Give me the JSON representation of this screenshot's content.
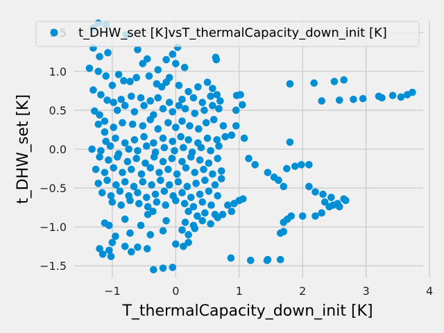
{
  "chart_data": {
    "type": "scatter",
    "xlabel": "T_thermalCapacity_down_init [K]",
    "ylabel": "t_DHW_set [K]",
    "legend_placement": "top",
    "grid": true,
    "xlim": [
      -1.6,
      3.9
    ],
    "ylim": [
      -1.65,
      1.65
    ],
    "xticks": [
      -1,
      0,
      1,
      2,
      3,
      4
    ],
    "yticks": [
      -1.5,
      -1.0,
      -0.5,
      0.0,
      0.5,
      1.0,
      1.5
    ],
    "xtick_labels": [
      "−1",
      "0",
      "1",
      "2",
      "3",
      "4"
    ],
    "ytick_labels": [
      "−1.5",
      "−1.0",
      "−0.5",
      "0.0",
      "0.5",
      "1.0",
      "1.5"
    ],
    "colors": {
      "background": "#f0f0f0",
      "grid": "#cbcbcb",
      "marker": "#008fd5"
    },
    "series": [
      {
        "name": "t_DHW_set [K]vsT_thermalCapacity_down_init [K]",
        "points": [
          [
            -1.3,
            1.56
          ],
          [
            -1.22,
            1.62
          ],
          [
            -1.1,
            1.6
          ],
          [
            -0.78,
            1.47
          ],
          [
            -1.3,
            1.3
          ],
          [
            -1.2,
            1.19
          ],
          [
            -1.07,
            1.24
          ],
          [
            -0.6,
            1.28
          ],
          [
            -0.52,
            1.1
          ],
          [
            -0.45,
            1.16
          ],
          [
            -0.28,
            1.02
          ],
          [
            -0.15,
            1.15
          ],
          [
            0.0,
            1.1
          ],
          [
            0.03,
            1.31
          ],
          [
            0.14,
            1.05
          ],
          [
            -0.05,
            1.22
          ],
          [
            0.63,
            1.18
          ],
          [
            0.64,
            1.15
          ],
          [
            -1.36,
            1.04
          ],
          [
            -1.22,
            1.0
          ],
          [
            -1.1,
            0.94
          ],
          [
            -1.0,
            0.82
          ],
          [
            -0.9,
            0.96
          ],
          [
            -0.82,
            0.88
          ],
          [
            -0.72,
            0.87
          ],
          [
            -0.62,
            0.92
          ],
          [
            -0.42,
            0.94
          ],
          [
            -0.3,
            0.84
          ],
          [
            -0.15,
            0.86
          ],
          [
            -0.1,
            0.92
          ],
          [
            0.05,
            0.82
          ],
          [
            0.2,
            0.74
          ],
          [
            0.35,
            0.8
          ],
          [
            0.5,
            0.86
          ],
          [
            0.58,
            0.78
          ],
          [
            0.65,
            0.7
          ],
          [
            -0.22,
            0.8
          ],
          [
            -1.3,
            0.76
          ],
          [
            -1.18,
            0.7
          ],
          [
            -1.08,
            0.63
          ],
          [
            -0.98,
            0.6
          ],
          [
            -0.86,
            0.64
          ],
          [
            -0.7,
            0.68
          ],
          [
            -0.55,
            0.66
          ],
          [
            -0.4,
            0.62
          ],
          [
            -0.28,
            0.66
          ],
          [
            -0.1,
            0.6
          ],
          [
            0.1,
            0.64
          ],
          [
            0.28,
            0.66
          ],
          [
            0.42,
            0.6
          ],
          [
            0.55,
            0.68
          ],
          [
            0.96,
            0.69
          ],
          [
            1.02,
            0.7
          ],
          [
            0.7,
            0.62
          ],
          [
            -1.28,
            0.49
          ],
          [
            -1.2,
            0.44
          ],
          [
            -1.12,
            0.36
          ],
          [
            -0.92,
            0.5
          ],
          [
            -0.8,
            0.56
          ],
          [
            -0.65,
            0.48
          ],
          [
            -0.5,
            0.56
          ],
          [
            -0.35,
            0.44
          ],
          [
            -0.2,
            0.52
          ],
          [
            -0.05,
            0.48
          ],
          [
            0.05,
            0.56
          ],
          [
            0.15,
            0.52
          ],
          [
            0.3,
            0.46
          ],
          [
            0.45,
            0.5
          ],
          [
            0.58,
            0.56
          ],
          [
            0.68,
            0.52
          ],
          [
            0.95,
            0.5
          ],
          [
            1.05,
            0.57
          ],
          [
            -1.22,
            0.32
          ],
          [
            -1.12,
            0.22
          ],
          [
            -0.98,
            0.28
          ],
          [
            -0.84,
            0.34
          ],
          [
            -0.68,
            0.32
          ],
          [
            -0.52,
            0.3
          ],
          [
            -0.4,
            0.38
          ],
          [
            -0.28,
            0.26
          ],
          [
            -0.12,
            0.34
          ],
          [
            0.0,
            0.28
          ],
          [
            0.1,
            0.36
          ],
          [
            0.22,
            0.3
          ],
          [
            0.36,
            0.26
          ],
          [
            0.48,
            0.34
          ],
          [
            0.6,
            0.38
          ],
          [
            0.75,
            0.3
          ],
          [
            0.95,
            0.3
          ],
          [
            -1.1,
            0.1
          ],
          [
            -0.95,
            0.14
          ],
          [
            -0.8,
            0.08
          ],
          [
            -0.65,
            0.12
          ],
          [
            -0.5,
            0.16
          ],
          [
            -0.35,
            0.08
          ],
          [
            -0.2,
            0.14
          ],
          [
            -0.05,
            0.1
          ],
          [
            0.08,
            0.16
          ],
          [
            0.2,
            0.12
          ],
          [
            0.35,
            0.08
          ],
          [
            0.5,
            0.14
          ],
          [
            0.65,
            0.12
          ],
          [
            0.78,
            0.16
          ],
          [
            0.88,
            0.18
          ],
          [
            1.08,
            0.14
          ],
          [
            -1.32,
            0.0
          ],
          [
            -1.18,
            -0.02
          ],
          [
            -1.03,
            0.04
          ],
          [
            -0.9,
            -0.06
          ],
          [
            -0.74,
            0.0
          ],
          [
            -0.6,
            -0.02
          ],
          [
            -0.46,
            0.04
          ],
          [
            -0.32,
            -0.04
          ],
          [
            -0.18,
            0.02
          ],
          [
            -0.02,
            -0.02
          ],
          [
            0.12,
            0.02
          ],
          [
            0.26,
            -0.04
          ],
          [
            0.4,
            0.02
          ],
          [
            0.55,
            -0.02
          ],
          [
            0.68,
            0.04
          ],
          [
            1.8,
            0.09
          ],
          [
            -1.2,
            -0.1
          ],
          [
            -1.06,
            -0.14
          ],
          [
            -0.92,
            -0.1
          ],
          [
            -0.76,
            -0.16
          ],
          [
            -0.62,
            -0.12
          ],
          [
            -0.48,
            -0.18
          ],
          [
            -0.34,
            -0.1
          ],
          [
            -0.2,
            -0.16
          ],
          [
            -0.06,
            -0.12
          ],
          [
            0.1,
            -0.16
          ],
          [
            0.24,
            -0.1
          ],
          [
            0.38,
            -0.14
          ],
          [
            0.52,
            -0.18
          ],
          [
            0.66,
            -0.12
          ],
          [
            1.15,
            -0.12
          ],
          [
            -1.26,
            -0.26
          ],
          [
            -1.12,
            -0.3
          ],
          [
            -0.98,
            -0.24
          ],
          [
            -0.84,
            -0.3
          ],
          [
            -0.7,
            -0.26
          ],
          [
            -0.54,
            -0.32
          ],
          [
            -0.4,
            -0.24
          ],
          [
            -0.26,
            -0.3
          ],
          [
            -0.12,
            -0.26
          ],
          [
            0.02,
            -0.32
          ],
          [
            0.16,
            -0.24
          ],
          [
            0.3,
            -0.3
          ],
          [
            0.44,
            -0.26
          ],
          [
            0.58,
            -0.32
          ],
          [
            0.72,
            -0.28
          ],
          [
            1.25,
            -0.2
          ],
          [
            -1.22,
            -0.44
          ],
          [
            -1.08,
            -0.4
          ],
          [
            -0.94,
            -0.46
          ],
          [
            -0.8,
            -0.42
          ],
          [
            -0.66,
            -0.48
          ],
          [
            -0.52,
            -0.42
          ],
          [
            -0.38,
            -0.46
          ],
          [
            -0.24,
            -0.4
          ],
          [
            -0.1,
            -0.46
          ],
          [
            0.04,
            -0.42
          ],
          [
            0.18,
            -0.48
          ],
          [
            0.32,
            -0.44
          ],
          [
            0.46,
            -0.4
          ],
          [
            0.62,
            -0.46
          ],
          [
            0.72,
            -0.38
          ],
          [
            1.45,
            -0.3
          ],
          [
            1.55,
            -0.36
          ],
          [
            1.62,
            -0.4
          ],
          [
            1.7,
            -0.48
          ],
          [
            1.75,
            -0.25
          ],
          [
            1.88,
            -0.22
          ],
          [
            1.98,
            -0.2
          ],
          [
            2.1,
            -0.2
          ],
          [
            -1.16,
            -0.56
          ],
          [
            -1.02,
            -0.6
          ],
          [
            -0.88,
            -0.54
          ],
          [
            -0.74,
            -0.6
          ],
          [
            -0.6,
            -0.56
          ],
          [
            -0.46,
            -0.62
          ],
          [
            -0.32,
            -0.58
          ],
          [
            -0.18,
            -0.54
          ],
          [
            -0.04,
            -0.6
          ],
          [
            0.1,
            -0.56
          ],
          [
            0.24,
            -0.62
          ],
          [
            0.38,
            -0.58
          ],
          [
            0.52,
            -0.54
          ],
          [
            0.66,
            -0.6
          ],
          [
            2.1,
            -0.48
          ],
          [
            2.2,
            -0.55
          ],
          [
            2.32,
            -0.58
          ],
          [
            2.45,
            -0.62
          ],
          [
            2.55,
            -0.7
          ],
          [
            2.65,
            -0.64
          ],
          [
            -1.0,
            -0.68
          ],
          [
            -0.86,
            -0.72
          ],
          [
            -0.72,
            -0.66
          ],
          [
            -0.58,
            -0.7
          ],
          [
            -0.44,
            -0.74
          ],
          [
            -0.3,
            -0.68
          ],
          [
            -0.16,
            -0.72
          ],
          [
            0.0,
            -0.66
          ],
          [
            0.14,
            -0.7
          ],
          [
            0.28,
            -0.74
          ],
          [
            0.42,
            -0.68
          ],
          [
            0.56,
            -0.72
          ],
          [
            0.82,
            -0.72
          ],
          [
            0.92,
            -0.7
          ],
          [
            1.0,
            -0.66
          ],
          [
            1.06,
            -0.64
          ],
          [
            2.35,
            -0.68
          ],
          [
            2.48,
            -0.72
          ],
          [
            2.58,
            -0.74
          ],
          [
            2.68,
            -0.66
          ],
          [
            -0.44,
            -0.84
          ],
          [
            -0.36,
            -0.8
          ],
          [
            0.2,
            -0.8
          ],
          [
            0.34,
            -0.86
          ],
          [
            0.46,
            -0.82
          ],
          [
            0.62,
            -0.84
          ],
          [
            0.74,
            -0.84
          ],
          [
            0.88,
            -0.8
          ],
          [
            1.7,
            -0.94
          ],
          [
            1.76,
            -0.9
          ],
          [
            1.82,
            -0.86
          ],
          [
            2.0,
            -0.86
          ],
          [
            2.2,
            -0.86
          ],
          [
            2.3,
            -0.82
          ],
          [
            2.42,
            -0.74
          ],
          [
            -1.12,
            -0.95
          ],
          [
            -1.05,
            -0.98
          ],
          [
            -0.8,
            -0.9
          ],
          [
            -0.55,
            -0.98
          ],
          [
            -0.15,
            -0.92
          ],
          [
            0.15,
            -0.94
          ],
          [
            0.28,
            -0.98
          ],
          [
            0.42,
            -0.92
          ],
          [
            0.55,
            -0.96
          ],
          [
            0.66,
            -0.88
          ],
          [
            -0.95,
            -1.12
          ],
          [
            -0.72,
            -1.08
          ],
          [
            -0.4,
            -1.1
          ],
          [
            -0.2,
            -1.05
          ],
          [
            0.1,
            -1.04
          ],
          [
            0.2,
            -1.1
          ],
          [
            0.3,
            -1.02
          ],
          [
            1.65,
            -1.08
          ],
          [
            1.7,
            -1.06
          ],
          [
            -1.2,
            -1.28
          ],
          [
            -1.05,
            -1.3
          ],
          [
            -0.8,
            -1.25
          ],
          [
            -0.6,
            -1.26
          ],
          [
            -0.45,
            -1.28
          ],
          [
            0.0,
            -1.22
          ],
          [
            0.12,
            -1.25
          ],
          [
            0.2,
            -1.2
          ],
          [
            -0.7,
            -1.32
          ],
          [
            -1.0,
            -1.2
          ],
          [
            -1.15,
            -1.35
          ],
          [
            -1.02,
            -1.38
          ],
          [
            0.87,
            -1.4
          ],
          [
            1.45,
            -1.42
          ],
          [
            1.65,
            -1.42
          ],
          [
            1.44,
            -1.43
          ],
          [
            1.18,
            -1.43
          ],
          [
            -0.35,
            -1.55
          ],
          [
            -0.2,
            -1.53
          ],
          [
            -0.05,
            -1.52
          ],
          [
            1.8,
            0.84
          ],
          [
            2.18,
            0.85
          ],
          [
            2.5,
            0.87
          ],
          [
            2.65,
            0.89
          ],
          [
            2.3,
            0.62
          ],
          [
            2.58,
            0.63
          ],
          [
            2.8,
            0.64
          ],
          [
            2.95,
            0.65
          ],
          [
            3.2,
            0.68
          ],
          [
            3.25,
            0.66
          ],
          [
            3.42,
            0.69
          ],
          [
            3.55,
            0.67
          ],
          [
            3.65,
            0.7
          ],
          [
            3.73,
            0.73
          ]
        ]
      }
    ]
  }
}
